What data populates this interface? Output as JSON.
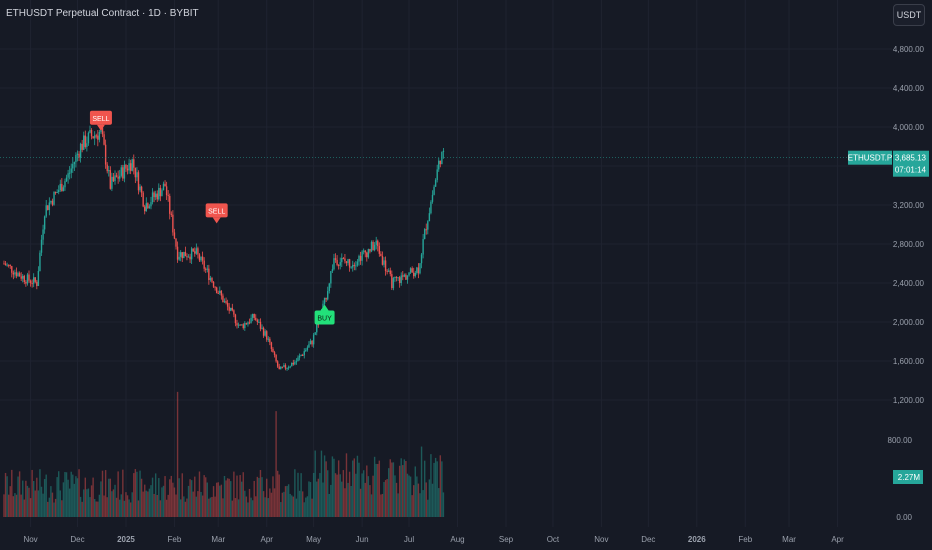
{
  "header": {
    "title": "ETHUSDT Perpetual Contract · 1D · BYBIT",
    "currency_button": "USDT"
  },
  "colors": {
    "background": "#161a25",
    "up": "#26a69a",
    "down": "#ef5350",
    "buy": "#22e07a",
    "sell": "#f0554e",
    "grid": "#1f2330",
    "axis_text": "#9aa0ac"
  },
  "price_label": {
    "symbol": "ETHUSDT.P",
    "price": "3,685.13",
    "countdown": "07:01:14"
  },
  "volume_label": "2.27M",
  "signals": [
    {
      "label": "SELL",
      "date": "2024-12-16",
      "price": 3900
    },
    {
      "label": "SELL",
      "date": "2025-02-28",
      "price": 2950
    },
    {
      "label": "BUY",
      "date": "2025-05-08",
      "price": 2200
    }
  ],
  "chart_data": {
    "type": "candlestick",
    "title": "ETHUSDT Perpetual Contract · 1D · BYBIT",
    "price_ticks": [
      "4,800.00",
      "4,400.00",
      "4,000.00",
      "3,600.00",
      "3,200.00",
      "2,800.00",
      "2,400.00",
      "2,000.00",
      "1,600.00",
      "1,200.00"
    ],
    "volume_ticks": [
      "800.00",
      "0.00"
    ],
    "x_ticks": [
      "Nov",
      "Dec",
      "2025",
      "Feb",
      "Mar",
      "Apr",
      "May",
      "Jun",
      "Jul",
      "Aug",
      "Sep",
      "Oct",
      "Nov",
      "Dec",
      "2026",
      "Feb",
      "Mar",
      "Apr"
    ],
    "close_anchors": [
      [
        "2024-10-15",
        2600
      ],
      [
        "2024-10-28",
        2450
      ],
      [
        "2024-11-05",
        2400
      ],
      [
        "2024-11-10",
        3150
      ],
      [
        "2024-11-25",
        3500
      ],
      [
        "2024-12-03",
        3800
      ],
      [
        "2024-12-09",
        3900
      ],
      [
        "2024-12-16",
        3950
      ],
      [
        "2024-12-22",
        3400
      ],
      [
        "2025-01-05",
        3650
      ],
      [
        "2025-01-13",
        3200
      ],
      [
        "2025-01-20",
        3300
      ],
      [
        "2025-01-26",
        3400
      ],
      [
        "2025-02-03",
        2700
      ],
      [
        "2025-02-15",
        2700
      ],
      [
        "2025-02-26",
        2400
      ],
      [
        "2025-03-05",
        2200
      ],
      [
        "2025-03-15",
        1950
      ],
      [
        "2025-03-24",
        2050
      ],
      [
        "2025-04-01",
        1850
      ],
      [
        "2025-04-09",
        1500
      ],
      [
        "2025-04-20",
        1600
      ],
      [
        "2025-04-30",
        1800
      ],
      [
        "2025-05-08",
        2200
      ],
      [
        "2025-05-14",
        2650
      ],
      [
        "2025-05-25",
        2600
      ],
      [
        "2025-06-10",
        2800
      ],
      [
        "2025-06-20",
        2400
      ],
      [
        "2025-06-26",
        2450
      ],
      [
        "2025-07-07",
        2550
      ],
      [
        "2025-07-12",
        3000
      ],
      [
        "2025-07-21",
        3700
      ],
      [
        "2025-07-23",
        3685
      ]
    ],
    "volume_spikes": [
      [
        "2025-02-03",
        1300
      ],
      [
        "2025-04-07",
        1100
      ]
    ]
  }
}
